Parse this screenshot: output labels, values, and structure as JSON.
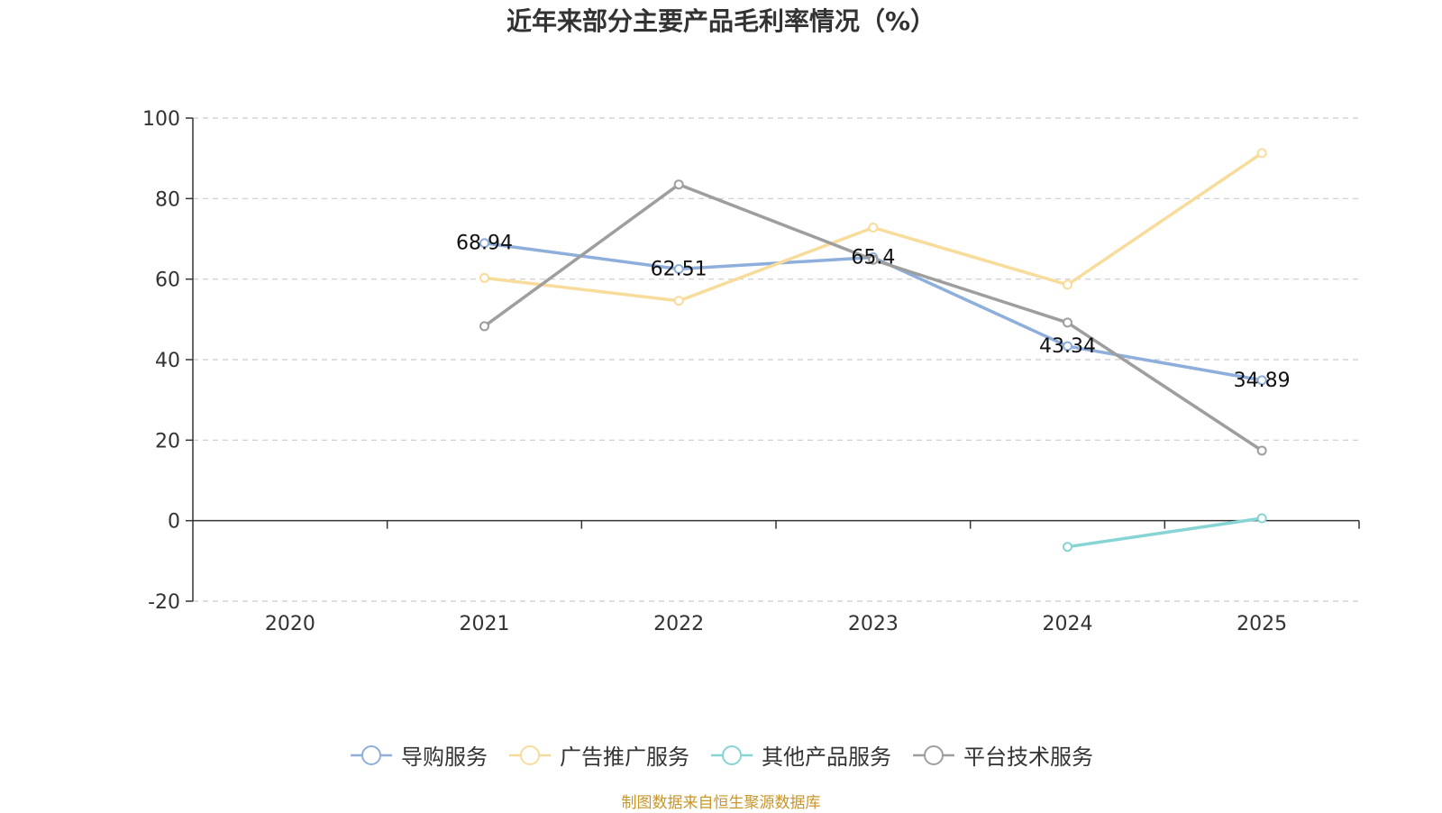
{
  "chart_data": {
    "type": "line",
    "title": "近年来部分主要产品毛利率情况（%）",
    "categories": [
      "2020",
      "2021",
      "2022",
      "2023",
      "2024",
      "2025"
    ],
    "ylim": [
      -20,
      100
    ],
    "yticks": [
      -20,
      0,
      20,
      40,
      60,
      80,
      100
    ],
    "grid": true,
    "legend_position": "bottom",
    "series": [
      {
        "name": "导购服务",
        "color": "#8eaedb",
        "values": [
          null,
          68.94,
          62.51,
          65.4,
          43.34,
          34.89
        ],
        "labels": [
          "",
          "68.94",
          "62.51",
          "65.4",
          "43.34",
          "34.89"
        ]
      },
      {
        "name": "广告推广服务",
        "color": "#f8dc9b",
        "values": [
          null,
          60.3,
          54.6,
          72.8,
          58.6,
          91.3
        ],
        "labels": [
          "",
          "",
          "",
          "",
          "",
          ""
        ]
      },
      {
        "name": "其他产品服务",
        "color": "#86d4d4",
        "values": [
          null,
          null,
          null,
          null,
          -6.5,
          0.6
        ],
        "labels": [
          "",
          "",
          "",
          "",
          "",
          ""
        ]
      },
      {
        "name": "平台技术服务",
        "color": "#9e9e9e",
        "values": [
          null,
          48.3,
          83.5,
          64.8,
          49.2,
          17.4
        ],
        "labels": [
          "",
          "",
          "",
          "",
          "",
          ""
        ]
      }
    ]
  },
  "source_note": "制图数据来自恒生聚源数据库"
}
